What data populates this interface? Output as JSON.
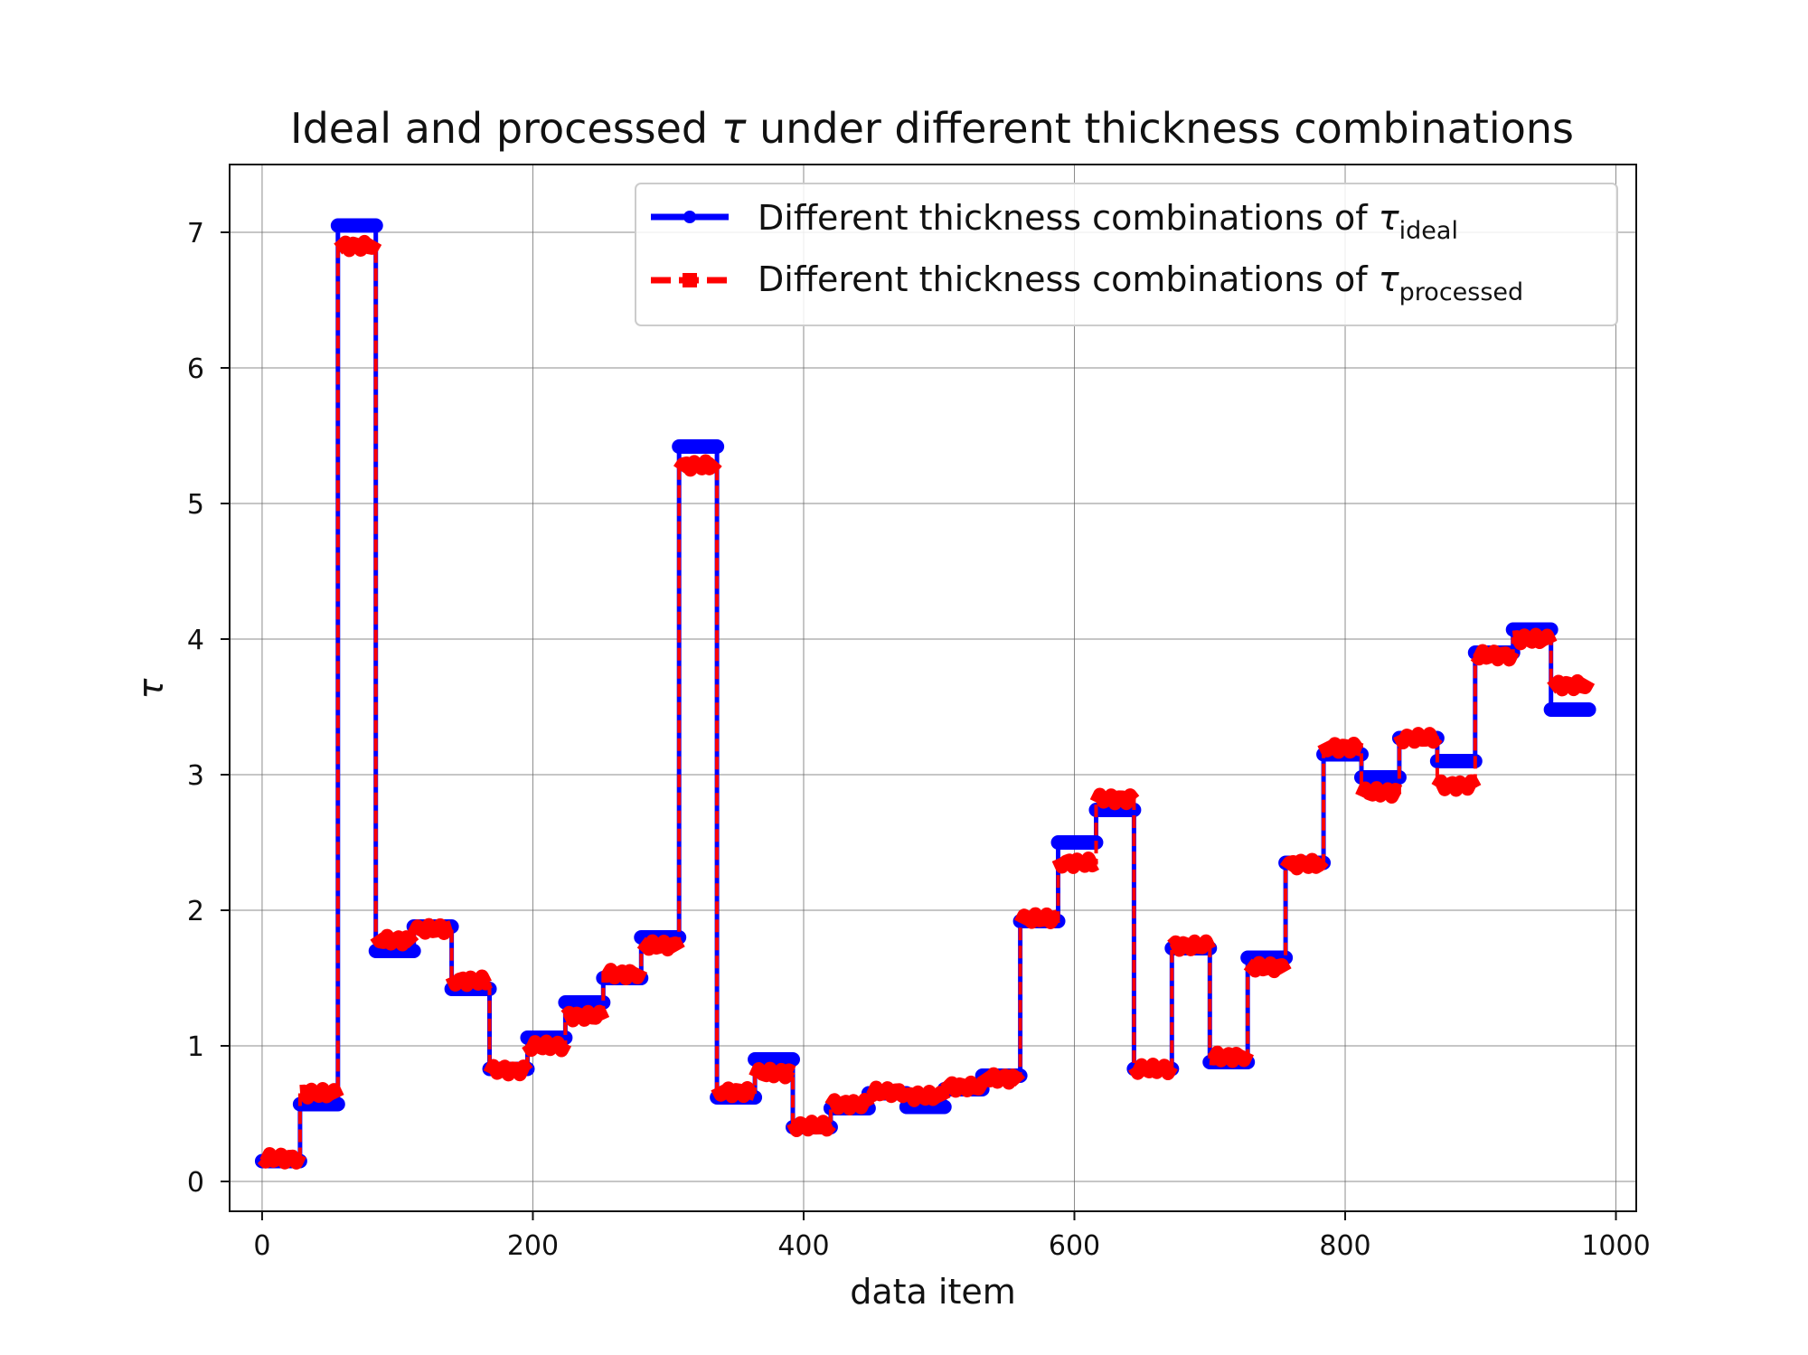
{
  "chart_data": {
    "type": "line",
    "title_prefix": "Ideal and processed ",
    "title_tau": "τ",
    "title_suffix": " under different thickness combinations",
    "xlabel": "data item",
    "ylabel": "τ",
    "xlim": [
      -24,
      1015
    ],
    "ylim": [
      -0.22,
      7.5
    ],
    "xticks": [
      0,
      200,
      400,
      600,
      800,
      1000
    ],
    "yticks": [
      0,
      1,
      2,
      3,
      4,
      5,
      6,
      7
    ],
    "grid": true,
    "legend_position": "top-right",
    "series": [
      {
        "name_text": "Different thickness combinations of ",
        "name_symbol": "τ",
        "name_subscript": "ideal",
        "color": "#0000ff",
        "style": "solid",
        "segments": [
          [
            0,
            28,
            0.15
          ],
          [
            28,
            56,
            0.57
          ],
          [
            56,
            84,
            7.05
          ],
          [
            84,
            112,
            1.7
          ],
          [
            112,
            140,
            1.88
          ],
          [
            140,
            168,
            1.42
          ],
          [
            168,
            196,
            0.83
          ],
          [
            196,
            224,
            1.06
          ],
          [
            224,
            252,
            1.32
          ],
          [
            252,
            280,
            1.5
          ],
          [
            280,
            308,
            1.8
          ],
          [
            308,
            336,
            5.42
          ],
          [
            336,
            364,
            0.62
          ],
          [
            364,
            392,
            0.9
          ],
          [
            392,
            420,
            0.4
          ],
          [
            420,
            448,
            0.54
          ],
          [
            448,
            476,
            0.65
          ],
          [
            476,
            504,
            0.55
          ],
          [
            504,
            532,
            0.68
          ],
          [
            532,
            560,
            0.78
          ],
          [
            560,
            588,
            1.92
          ],
          [
            588,
            616,
            2.5
          ],
          [
            616,
            644,
            2.74
          ],
          [
            644,
            672,
            0.83
          ],
          [
            672,
            700,
            1.72
          ],
          [
            700,
            728,
            0.88
          ],
          [
            728,
            756,
            1.65
          ],
          [
            756,
            784,
            2.35
          ],
          [
            784,
            812,
            3.15
          ],
          [
            812,
            840,
            2.98
          ],
          [
            840,
            868,
            3.27
          ],
          [
            868,
            896,
            3.1
          ],
          [
            896,
            924,
            3.9
          ],
          [
            924,
            952,
            4.07
          ],
          [
            952,
            980,
            3.48
          ]
        ]
      },
      {
        "name_text": "Different thickness combinations of ",
        "name_symbol": "τ",
        "name_subscript": "processed",
        "color": "#ff0000",
        "style": "dashed",
        "segments": [
          [
            0,
            28,
            0.17
          ],
          [
            28,
            56,
            0.65
          ],
          [
            56,
            84,
            6.9
          ],
          [
            84,
            112,
            1.78
          ],
          [
            112,
            140,
            1.86
          ],
          [
            140,
            168,
            1.48
          ],
          [
            168,
            196,
            0.82
          ],
          [
            196,
            224,
            1.0
          ],
          [
            224,
            252,
            1.22
          ],
          [
            252,
            280,
            1.53
          ],
          [
            280,
            308,
            1.74
          ],
          [
            308,
            336,
            5.28
          ],
          [
            336,
            364,
            0.66
          ],
          [
            364,
            392,
            0.8
          ],
          [
            392,
            420,
            0.41
          ],
          [
            420,
            448,
            0.57
          ],
          [
            448,
            476,
            0.66
          ],
          [
            476,
            504,
            0.63
          ],
          [
            504,
            532,
            0.7
          ],
          [
            532,
            560,
            0.76
          ],
          [
            560,
            588,
            1.94
          ],
          [
            588,
            616,
            2.35
          ],
          [
            616,
            644,
            2.82
          ],
          [
            644,
            672,
            0.83
          ],
          [
            672,
            700,
            1.74
          ],
          [
            700,
            728,
            0.92
          ],
          [
            728,
            756,
            1.58
          ],
          [
            756,
            784,
            2.34
          ],
          [
            784,
            812,
            3.2
          ],
          [
            812,
            840,
            2.87
          ],
          [
            840,
            868,
            3.27
          ],
          [
            868,
            896,
            2.92
          ],
          [
            896,
            924,
            3.88
          ],
          [
            924,
            952,
            4.0
          ],
          [
            952,
            980,
            3.66
          ]
        ]
      }
    ]
  }
}
